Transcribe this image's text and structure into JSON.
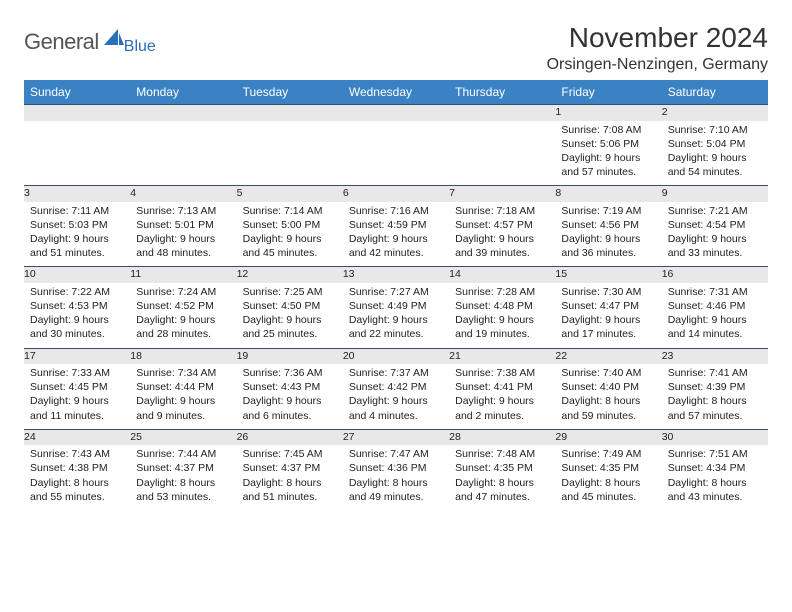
{
  "logo": {
    "word1": "General",
    "word2": "Blue"
  },
  "title": "November 2024",
  "location": "Orsingen-Nenzingen, Germany",
  "colors": {
    "header_bg": "#3a82c4",
    "header_text": "#ffffff",
    "daynum_bg": "#e8e8e8",
    "rule": "#374f6b",
    "logo_grey": "#555555",
    "logo_blue": "#2a6eb5"
  },
  "weekdays": [
    "Sunday",
    "Monday",
    "Tuesday",
    "Wednesday",
    "Thursday",
    "Friday",
    "Saturday"
  ],
  "weeks": [
    {
      "nums": [
        "",
        "",
        "",
        "",
        "",
        "1",
        "2"
      ],
      "cells": [
        null,
        null,
        null,
        null,
        null,
        {
          "sunrise": "Sunrise: 7:08 AM",
          "sunset": "Sunset: 5:06 PM",
          "day1": "Daylight: 9 hours",
          "day2": "and 57 minutes."
        },
        {
          "sunrise": "Sunrise: 7:10 AM",
          "sunset": "Sunset: 5:04 PM",
          "day1": "Daylight: 9 hours",
          "day2": "and 54 minutes."
        }
      ]
    },
    {
      "nums": [
        "3",
        "4",
        "5",
        "6",
        "7",
        "8",
        "9"
      ],
      "cells": [
        {
          "sunrise": "Sunrise: 7:11 AM",
          "sunset": "Sunset: 5:03 PM",
          "day1": "Daylight: 9 hours",
          "day2": "and 51 minutes."
        },
        {
          "sunrise": "Sunrise: 7:13 AM",
          "sunset": "Sunset: 5:01 PM",
          "day1": "Daylight: 9 hours",
          "day2": "and 48 minutes."
        },
        {
          "sunrise": "Sunrise: 7:14 AM",
          "sunset": "Sunset: 5:00 PM",
          "day1": "Daylight: 9 hours",
          "day2": "and 45 minutes."
        },
        {
          "sunrise": "Sunrise: 7:16 AM",
          "sunset": "Sunset: 4:59 PM",
          "day1": "Daylight: 9 hours",
          "day2": "and 42 minutes."
        },
        {
          "sunrise": "Sunrise: 7:18 AM",
          "sunset": "Sunset: 4:57 PM",
          "day1": "Daylight: 9 hours",
          "day2": "and 39 minutes."
        },
        {
          "sunrise": "Sunrise: 7:19 AM",
          "sunset": "Sunset: 4:56 PM",
          "day1": "Daylight: 9 hours",
          "day2": "and 36 minutes."
        },
        {
          "sunrise": "Sunrise: 7:21 AM",
          "sunset": "Sunset: 4:54 PM",
          "day1": "Daylight: 9 hours",
          "day2": "and 33 minutes."
        }
      ]
    },
    {
      "nums": [
        "10",
        "11",
        "12",
        "13",
        "14",
        "15",
        "16"
      ],
      "cells": [
        {
          "sunrise": "Sunrise: 7:22 AM",
          "sunset": "Sunset: 4:53 PM",
          "day1": "Daylight: 9 hours",
          "day2": "and 30 minutes."
        },
        {
          "sunrise": "Sunrise: 7:24 AM",
          "sunset": "Sunset: 4:52 PM",
          "day1": "Daylight: 9 hours",
          "day2": "and 28 minutes."
        },
        {
          "sunrise": "Sunrise: 7:25 AM",
          "sunset": "Sunset: 4:50 PM",
          "day1": "Daylight: 9 hours",
          "day2": "and 25 minutes."
        },
        {
          "sunrise": "Sunrise: 7:27 AM",
          "sunset": "Sunset: 4:49 PM",
          "day1": "Daylight: 9 hours",
          "day2": "and 22 minutes."
        },
        {
          "sunrise": "Sunrise: 7:28 AM",
          "sunset": "Sunset: 4:48 PM",
          "day1": "Daylight: 9 hours",
          "day2": "and 19 minutes."
        },
        {
          "sunrise": "Sunrise: 7:30 AM",
          "sunset": "Sunset: 4:47 PM",
          "day1": "Daylight: 9 hours",
          "day2": "and 17 minutes."
        },
        {
          "sunrise": "Sunrise: 7:31 AM",
          "sunset": "Sunset: 4:46 PM",
          "day1": "Daylight: 9 hours",
          "day2": "and 14 minutes."
        }
      ]
    },
    {
      "nums": [
        "17",
        "18",
        "19",
        "20",
        "21",
        "22",
        "23"
      ],
      "cells": [
        {
          "sunrise": "Sunrise: 7:33 AM",
          "sunset": "Sunset: 4:45 PM",
          "day1": "Daylight: 9 hours",
          "day2": "and 11 minutes."
        },
        {
          "sunrise": "Sunrise: 7:34 AM",
          "sunset": "Sunset: 4:44 PM",
          "day1": "Daylight: 9 hours",
          "day2": "and 9 minutes."
        },
        {
          "sunrise": "Sunrise: 7:36 AM",
          "sunset": "Sunset: 4:43 PM",
          "day1": "Daylight: 9 hours",
          "day2": "and 6 minutes."
        },
        {
          "sunrise": "Sunrise: 7:37 AM",
          "sunset": "Sunset: 4:42 PM",
          "day1": "Daylight: 9 hours",
          "day2": "and 4 minutes."
        },
        {
          "sunrise": "Sunrise: 7:38 AM",
          "sunset": "Sunset: 4:41 PM",
          "day1": "Daylight: 9 hours",
          "day2": "and 2 minutes."
        },
        {
          "sunrise": "Sunrise: 7:40 AM",
          "sunset": "Sunset: 4:40 PM",
          "day1": "Daylight: 8 hours",
          "day2": "and 59 minutes."
        },
        {
          "sunrise": "Sunrise: 7:41 AM",
          "sunset": "Sunset: 4:39 PM",
          "day1": "Daylight: 8 hours",
          "day2": "and 57 minutes."
        }
      ]
    },
    {
      "nums": [
        "24",
        "25",
        "26",
        "27",
        "28",
        "29",
        "30"
      ],
      "cells": [
        {
          "sunrise": "Sunrise: 7:43 AM",
          "sunset": "Sunset: 4:38 PM",
          "day1": "Daylight: 8 hours",
          "day2": "and 55 minutes."
        },
        {
          "sunrise": "Sunrise: 7:44 AM",
          "sunset": "Sunset: 4:37 PM",
          "day1": "Daylight: 8 hours",
          "day2": "and 53 minutes."
        },
        {
          "sunrise": "Sunrise: 7:45 AM",
          "sunset": "Sunset: 4:37 PM",
          "day1": "Daylight: 8 hours",
          "day2": "and 51 minutes."
        },
        {
          "sunrise": "Sunrise: 7:47 AM",
          "sunset": "Sunset: 4:36 PM",
          "day1": "Daylight: 8 hours",
          "day2": "and 49 minutes."
        },
        {
          "sunrise": "Sunrise: 7:48 AM",
          "sunset": "Sunset: 4:35 PM",
          "day1": "Daylight: 8 hours",
          "day2": "and 47 minutes."
        },
        {
          "sunrise": "Sunrise: 7:49 AM",
          "sunset": "Sunset: 4:35 PM",
          "day1": "Daylight: 8 hours",
          "day2": "and 45 minutes."
        },
        {
          "sunrise": "Sunrise: 7:51 AM",
          "sunset": "Sunset: 4:34 PM",
          "day1": "Daylight: 8 hours",
          "day2": "and 43 minutes."
        }
      ]
    }
  ]
}
